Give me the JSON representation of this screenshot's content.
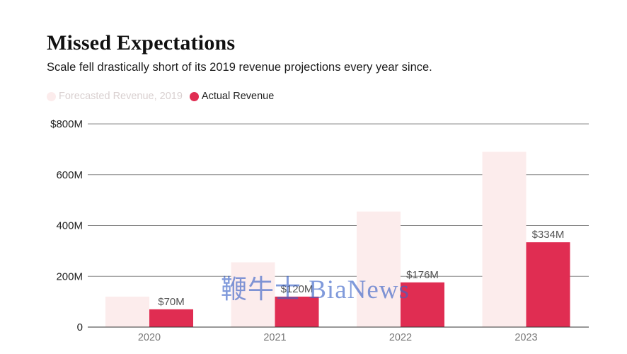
{
  "title": "Missed Expectations",
  "subtitle": "Scale fell drastically short of its 2019 revenue projections every year since.",
  "legend": [
    {
      "label": "Forecasted Revenue, 2019",
      "color": "#fcecec",
      "text_color": "#d9d0d0"
    },
    {
      "label": "Actual Revenue",
      "color": "#e02d52",
      "text_color": "#222222"
    }
  ],
  "watermark": "鞭牛士 BiaNews",
  "chart_data": {
    "type": "bar",
    "categories": [
      "2020",
      "2021",
      "2022",
      "2023"
    ],
    "series": [
      {
        "name": "Forecasted Revenue, 2019",
        "values": [
          120,
          255,
          455,
          690
        ],
        "color": "#fcecec"
      },
      {
        "name": "Actual Revenue",
        "values": [
          70,
          120,
          176,
          334
        ],
        "color": "#e02d52",
        "data_labels": [
          "$70M",
          "$120M",
          "$176M",
          "$334M"
        ]
      }
    ],
    "yticks": [
      0,
      200,
      400,
      600,
      800
    ],
    "ytick_labels": [
      "0",
      "200M",
      "400M",
      "600M",
      "$800M"
    ],
    "ylim": [
      0,
      800
    ],
    "grid": true,
    "legend_position": "top-left"
  }
}
